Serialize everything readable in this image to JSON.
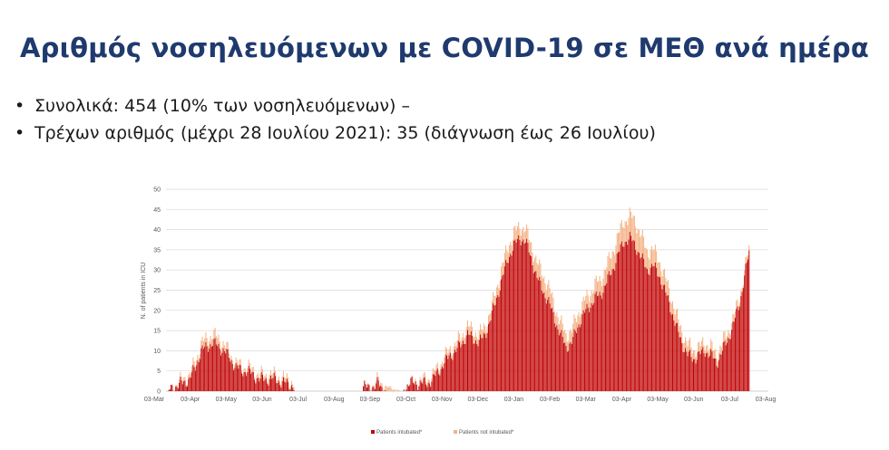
{
  "slide": {
    "title": "Αριθμός νοσηλευόμενων με COVID-19 σε ΜΕΘ ανά ημέρα",
    "bullets": [
      "Συνολικά: 454 (10% των νοσηλευόμενων) –",
      "Τρέχων αριθμός (μέχρι 28 Ιουλίου 2021): 35 (διάγνωση έως 26 Ιουλίου)"
    ],
    "bullet_glyph": "•"
  },
  "chart_data": {
    "type": "bar",
    "stacked": true,
    "title": "",
    "xlabel": "",
    "ylabel": "N. of patients in ICU",
    "ylim": [
      0,
      50
    ],
    "yticks": [
      0,
      5,
      10,
      15,
      20,
      25,
      30,
      35,
      40,
      45,
      50
    ],
    "xticks": [
      "03-Mar",
      "03-Apr",
      "03-May",
      "03-Jun",
      "03-Jul",
      "03-Aug",
      "03-Sep",
      "03-Oct",
      "03-Nov",
      "03-Dec",
      "03-Jan",
      "03-Feb",
      "03-Mar",
      "03-Apr",
      "03-May",
      "03-Jun",
      "03-Jul",
      "03-Aug"
    ],
    "grid": "horizontal",
    "legend_position": "bottom",
    "series": [
      {
        "name": "Patients intubated*",
        "color": "#c00000",
        "points": [
          {
            "x": 0,
            "y": 0
          },
          {
            "x": 20,
            "y": 3
          },
          {
            "x": 25,
            "y": 6
          },
          {
            "x": 30,
            "y": 10
          },
          {
            "x": 35,
            "y": 11
          },
          {
            "x": 40,
            "y": 12
          },
          {
            "x": 45,
            "y": 11
          },
          {
            "x": 50,
            "y": 10
          },
          {
            "x": 55,
            "y": 8
          },
          {
            "x": 60,
            "y": 6
          },
          {
            "x": 65,
            "y": 5
          },
          {
            "x": 70,
            "y": 5
          },
          {
            "x": 75,
            "y": 4
          },
          {
            "x": 80,
            "y": 3
          },
          {
            "x": 85,
            "y": 3
          },
          {
            "x": 90,
            "y": 3
          },
          {
            "x": 95,
            "y": 3
          },
          {
            "x": 100,
            "y": 2
          },
          {
            "x": 105,
            "y": 2
          },
          {
            "x": 110,
            "y": 1
          },
          {
            "x": 111,
            "y": 0
          },
          {
            "x": 169,
            "y": 0
          },
          {
            "x": 170,
            "y": 1
          },
          {
            "x": 180,
            "y": 1
          },
          {
            "x": 183,
            "y": 2
          },
          {
            "x": 186,
            "y": 1
          },
          {
            "x": 190,
            "y": 0
          },
          {
            "x": 204,
            "y": 0
          },
          {
            "x": 206,
            "y": 1
          },
          {
            "x": 210,
            "y": 2
          },
          {
            "x": 215,
            "y": 2
          },
          {
            "x": 220,
            "y": 2
          },
          {
            "x": 225,
            "y": 2
          },
          {
            "x": 230,
            "y": 3
          },
          {
            "x": 235,
            "y": 5
          },
          {
            "x": 240,
            "y": 7
          },
          {
            "x": 245,
            "y": 9
          },
          {
            "x": 250,
            "y": 10
          },
          {
            "x": 255,
            "y": 12
          },
          {
            "x": 260,
            "y": 14
          },
          {
            "x": 265,
            "y": 13
          },
          {
            "x": 270,
            "y": 12
          },
          {
            "x": 275,
            "y": 14
          },
          {
            "x": 280,
            "y": 18
          },
          {
            "x": 285,
            "y": 23
          },
          {
            "x": 290,
            "y": 28
          },
          {
            "x": 295,
            "y": 33
          },
          {
            "x": 300,
            "y": 36
          },
          {
            "x": 305,
            "y": 38
          },
          {
            "x": 310,
            "y": 37
          },
          {
            "x": 315,
            "y": 33
          },
          {
            "x": 320,
            "y": 28
          },
          {
            "x": 325,
            "y": 25
          },
          {
            "x": 330,
            "y": 22
          },
          {
            "x": 335,
            "y": 18
          },
          {
            "x": 340,
            "y": 14
          },
          {
            "x": 345,
            "y": 11
          },
          {
            "x": 350,
            "y": 12
          },
          {
            "x": 355,
            "y": 16
          },
          {
            "x": 360,
            "y": 19
          },
          {
            "x": 365,
            "y": 21
          },
          {
            "x": 370,
            "y": 23
          },
          {
            "x": 375,
            "y": 24
          },
          {
            "x": 380,
            "y": 27
          },
          {
            "x": 385,
            "y": 30
          },
          {
            "x": 390,
            "y": 34
          },
          {
            "x": 395,
            "y": 37
          },
          {
            "x": 400,
            "y": 38
          },
          {
            "x": 405,
            "y": 36
          },
          {
            "x": 410,
            "y": 33
          },
          {
            "x": 415,
            "y": 30
          },
          {
            "x": 420,
            "y": 31
          },
          {
            "x": 425,
            "y": 29
          },
          {
            "x": 430,
            "y": 25
          },
          {
            "x": 435,
            "y": 21
          },
          {
            "x": 440,
            "y": 16
          },
          {
            "x": 445,
            "y": 12
          },
          {
            "x": 450,
            "y": 9
          },
          {
            "x": 455,
            "y": 8
          },
          {
            "x": 460,
            "y": 9
          },
          {
            "x": 465,
            "y": 10
          },
          {
            "x": 470,
            "y": 9
          },
          {
            "x": 475,
            "y": 7
          },
          {
            "x": 480,
            "y": 10
          },
          {
            "x": 485,
            "y": 13
          },
          {
            "x": 490,
            "y": 17
          },
          {
            "x": 495,
            "y": 22
          },
          {
            "x": 500,
            "y": 30
          },
          {
            "x": 503,
            "y": 34
          }
        ]
      },
      {
        "name": "Patients not intubated*",
        "color": "#f4b183",
        "points": [
          {
            "x": 0,
            "y": 0
          },
          {
            "x": 20,
            "y": 1
          },
          {
            "x": 35,
            "y": 2
          },
          {
            "x": 45,
            "y": 2
          },
          {
            "x": 55,
            "y": 1
          },
          {
            "x": 70,
            "y": 1
          },
          {
            "x": 90,
            "y": 1
          },
          {
            "x": 110,
            "y": 1
          },
          {
            "x": 111,
            "y": 0
          },
          {
            "x": 169,
            "y": 0
          },
          {
            "x": 190,
            "y": 1
          },
          {
            "x": 204,
            "y": 0
          },
          {
            "x": 230,
            "y": 1
          },
          {
            "x": 260,
            "y": 2
          },
          {
            "x": 280,
            "y": 2
          },
          {
            "x": 290,
            "y": 3
          },
          {
            "x": 300,
            "y": 3
          },
          {
            "x": 310,
            "y": 3
          },
          {
            "x": 325,
            "y": 4
          },
          {
            "x": 340,
            "y": 3
          },
          {
            "x": 350,
            "y": 3
          },
          {
            "x": 365,
            "y": 3
          },
          {
            "x": 380,
            "y": 4
          },
          {
            "x": 395,
            "y": 5
          },
          {
            "x": 405,
            "y": 6
          },
          {
            "x": 420,
            "y": 4
          },
          {
            "x": 440,
            "y": 3
          },
          {
            "x": 460,
            "y": 2
          },
          {
            "x": 480,
            "y": 2
          },
          {
            "x": 503,
            "y": 1
          }
        ]
      }
    ]
  }
}
